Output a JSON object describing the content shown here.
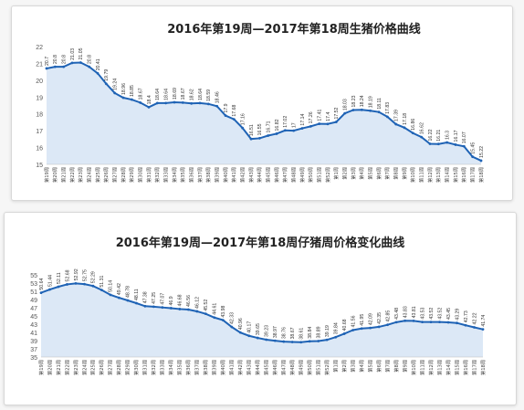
{
  "charts": [
    {
      "title": "2016年第19周—2017年第18周生猪价格曲线",
      "chart_data": {
        "type": "area",
        "title": "2016年第19周—2017年第18周生猪价格曲线",
        "xlabel": "",
        "ylabel": "",
        "ylim": [
          15,
          22
        ],
        "yticks": [
          15,
          16,
          17,
          18,
          19,
          20,
          21,
          22
        ],
        "grid": false,
        "legend": "none",
        "categories": [
          "第19周",
          "第20周",
          "第21周",
          "第22周",
          "第23周",
          "第24周",
          "第25周",
          "第26周",
          "第27周",
          "第28周",
          "第29周",
          "第30周",
          "第31周",
          "第32周",
          "第33周",
          "第34周",
          "第35周",
          "第36周",
          "第37周",
          "第38周",
          "第39周",
          "第40周",
          "第41周",
          "第42周",
          "第43周",
          "第44周",
          "第45周",
          "第46周",
          "第47周",
          "第48周",
          "第49周",
          "第50周",
          "第51周",
          "第52周",
          "第1周",
          "第2周",
          "第3周",
          "第4周",
          "第5周",
          "第6周",
          "第7周",
          "第8周",
          "第9周",
          "第10周",
          "第11周",
          "第12周",
          "第13周",
          "第14周",
          "第15周",
          "第16周",
          "第17周",
          "第18周"
        ],
        "values": [
          20.7,
          20.8,
          20.8,
          21.03,
          21.05,
          20.8,
          20.41,
          19.79,
          19.24,
          18.96,
          18.85,
          18.67,
          18.4,
          18.64,
          18.64,
          18.69,
          18.67,
          18.62,
          18.64,
          18.59,
          18.46,
          17.9,
          17.68,
          17.16,
          16.51,
          16.55,
          16.71,
          16.82,
          17.02,
          17.0,
          17.14,
          17.26,
          17.41,
          17.4,
          17.52,
          18.03,
          18.23,
          18.24,
          18.19,
          18.11,
          17.83,
          17.39,
          17.18,
          16.86,
          16.62,
          16.22,
          16.21,
          16.3,
          16.17,
          16.07,
          15.45,
          15.22
        ],
        "data_labels": [
          "20.7",
          "20.8",
          "20.8",
          "21.03",
          "21.05",
          "20.8",
          "20.41",
          "19.79",
          "19.24",
          "18.96",
          "18.85",
          "18.67",
          "18.4",
          "18.64",
          "18.64",
          "18.69",
          "18.67",
          "18.62",
          "18.64",
          "18.59",
          "18.46",
          "17.9",
          "17.68",
          "17.16",
          "16.51",
          "16.55",
          "16.71",
          "16.82",
          "17.02",
          "17",
          "17.14",
          "17.26",
          "17.41",
          "17.4",
          "17.52",
          "18.03",
          "18.23",
          "18.24",
          "18.19",
          "18.11",
          "17.83",
          "17.39",
          "17.18",
          "16.86",
          "16.62",
          "16.22",
          "16.21",
          "16.3",
          "16.17",
          "16.07",
          "15.45",
          "15.22"
        ],
        "colors": {
          "line": "#1f63b5",
          "fill": "#dce8f6",
          "point": "#1f63b5"
        }
      }
    },
    {
      "title": "2016年第19周—2017年第18周仔猪周价格变化曲线",
      "chart_data": {
        "type": "area",
        "title": "2016年第19周—2017年第18周仔猪周价格变化曲线",
        "xlabel": "",
        "ylabel": "",
        "ylim": [
          35,
          55
        ],
        "yticks": [
          35,
          37,
          39,
          41,
          43,
          45,
          47,
          49,
          51,
          53,
          55
        ],
        "grid": false,
        "legend": "none",
        "categories": [
          "第19周",
          "第20周",
          "第21周",
          "第22周",
          "第23周",
          "第24周",
          "第25周",
          "第26周",
          "第27周",
          "第28周",
          "第29周",
          "第30周",
          "第31周",
          "第32周",
          "第33周",
          "第34周",
          "第35周",
          "第36周",
          "第37周",
          "第38周",
          "第39周",
          "第40周",
          "第41周",
          "第42周",
          "第43周",
          "第44周",
          "第45周",
          "第46周",
          "第47周",
          "第48周",
          "第49周",
          "第50周",
          "第51周",
          "第52周",
          "第1周",
          "第2周",
          "第3周",
          "第4周",
          "第5周",
          "第6周",
          "第7周",
          "第8周",
          "第9周",
          "第10周",
          "第11周",
          "第12周",
          "第13周",
          "第14周",
          "第15周",
          "第16周",
          "第17周",
          "第18周"
        ],
        "values": [
          50.64,
          51.44,
          52.11,
          52.68,
          52.92,
          52.75,
          52.29,
          51.31,
          50.14,
          49.42,
          48.78,
          48.11,
          47.38,
          47.25,
          47.07,
          46.9,
          46.68,
          46.56,
          46.12,
          45.52,
          44.61,
          43.98,
          42.33,
          40.96,
          40.17,
          39.65,
          39.23,
          38.97,
          38.76,
          38.67,
          38.61,
          38.84,
          38.89,
          39.19,
          39.84,
          40.68,
          41.56,
          41.95,
          42.09,
          42.35,
          42.85,
          43.48,
          43.83,
          43.81,
          43.53,
          43.52,
          43.52,
          43.45,
          43.29,
          42.73,
          42.22,
          41.74
        ],
        "data_labels": [
          "50.64",
          "51.44",
          "52.11",
          "52.68",
          "52.92",
          "52.75",
          "52.29",
          "51.31",
          "50.14",
          "49.42",
          "48.78",
          "48.11",
          "47.38",
          "47.25",
          "47.07",
          "46.9",
          "46.68",
          "46.56",
          "46.12",
          "45.52",
          "44.61",
          "43.98",
          "42.33",
          "40.96",
          "40.17",
          "39.65",
          "39.23",
          "38.97",
          "38.76",
          "38.67",
          "38.61",
          "38.84",
          "38.89",
          "39.19",
          "39.84",
          "40.68",
          "41.56",
          "41.95",
          "42.09",
          "42.35",
          "42.85",
          "43.48",
          "43.83",
          "43.81",
          "43.53",
          "43.52",
          "43.52",
          "43.45",
          "43.29",
          "42.73",
          "42.22",
          "41.74"
        ],
        "colors": {
          "line": "#1f63b5",
          "fill": "#dce8f6",
          "point": "#1f63b5"
        }
      }
    }
  ]
}
